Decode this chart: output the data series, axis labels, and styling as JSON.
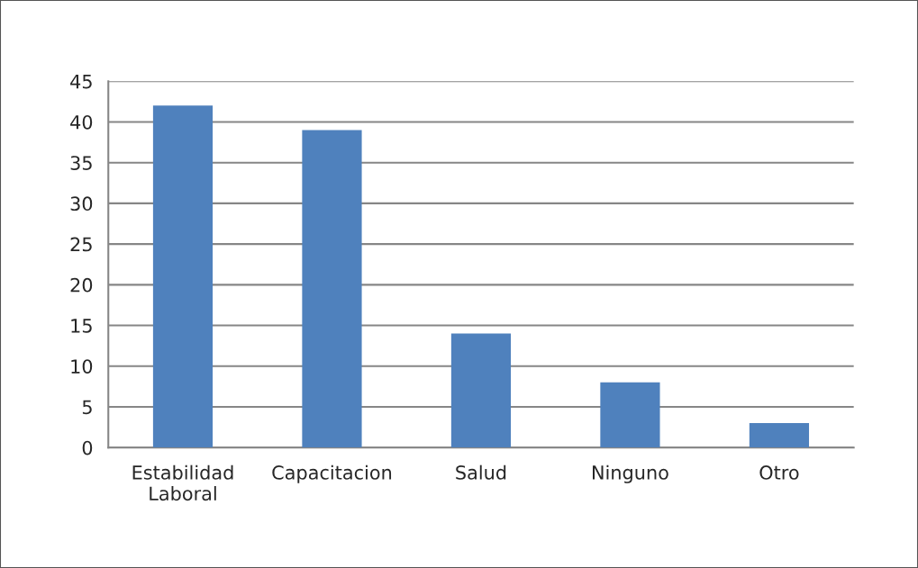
{
  "chart_data": {
    "type": "bar",
    "categories": [
      "Estabilidad Laboral",
      "Capacitacion",
      "Salud",
      "Ninguno",
      "Otro"
    ],
    "values": [
      42,
      39,
      14,
      8,
      3
    ],
    "color": "#4f81bd",
    "ylim": [
      0,
      45
    ],
    "yticks": [
      0,
      5,
      10,
      15,
      20,
      25,
      30,
      35,
      40,
      45
    ],
    "grid": "y"
  }
}
